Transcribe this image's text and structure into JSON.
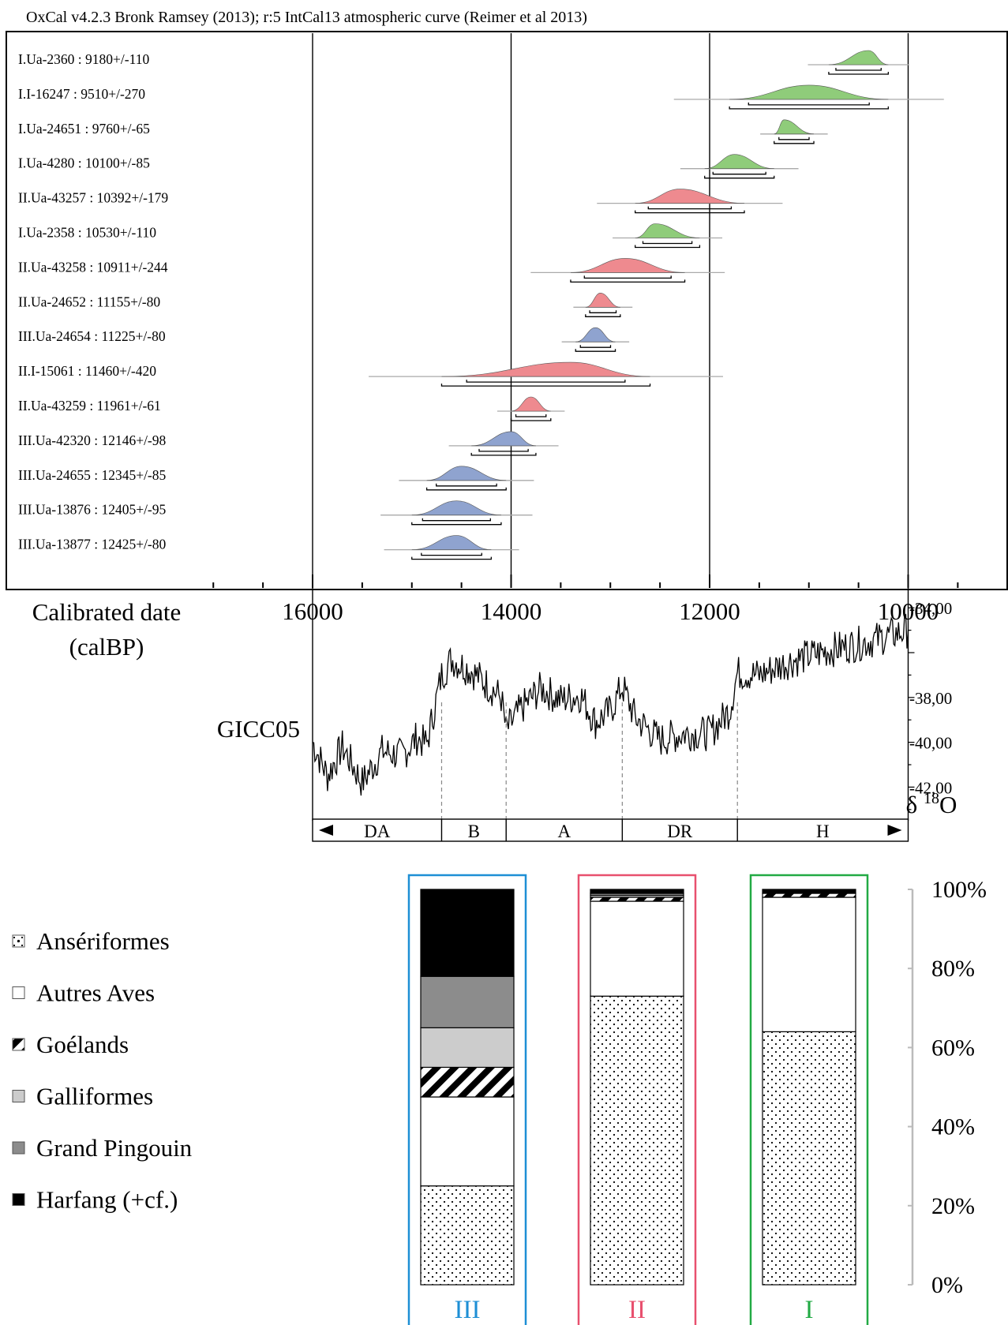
{
  "header": {
    "title": "OxCal v4.2.3 Bronk Ramsey (2013); r:5 IntCal13 atmospheric curve (Reimer et al 2013)"
  },
  "colors": {
    "I": "#22aa44",
    "II": "#e8506e",
    "III": "#1e8fd5",
    "dist_I": "#8fcc7a",
    "dist_II": "#ee8a8f",
    "dist_III": "#8fa3cf"
  },
  "chart_data": [
    {
      "type": "range",
      "name": "oxcal_calibration",
      "xlabel": "Calibrated date (calBP)",
      "xlim": [
        17000,
        9000
      ],
      "x_reversed": true,
      "tick_labels": [
        "16000",
        "14000",
        "12000",
        "10000"
      ],
      "tick_values": [
        16000,
        14000,
        12000,
        10000
      ],
      "samples": [
        {
          "label": "I.Ua-2360 : 9180+/-110",
          "group": "I",
          "range_start": 10800,
          "range_end": 10200,
          "peak": 10400
        },
        {
          "label": "I.I-16247 : 9510+/-270",
          "group": "I",
          "range_start": 11800,
          "range_end": 10200,
          "peak": 11000
        },
        {
          "label": "I.Ua-24651 : 9760+/-65",
          "group": "I",
          "range_start": 11350,
          "range_end": 10950,
          "peak": 11250
        },
        {
          "label": "I.Ua-4280 : 10100+/-85",
          "group": "I",
          "range_start": 12050,
          "range_end": 11350,
          "peak": 11750
        },
        {
          "label": "II.Ua-43257 : 10392+/-179",
          "group": "II",
          "range_start": 12750,
          "range_end": 11650,
          "peak": 12300
        },
        {
          "label": "I.Ua-2358 : 10530+/-110",
          "group": "I",
          "range_start": 12750,
          "range_end": 12100,
          "peak": 12550
        },
        {
          "label": "II.Ua-43258 : 10911+/-244",
          "group": "II",
          "range_start": 13400,
          "range_end": 12250,
          "peak": 12850
        },
        {
          "label": "II.Ua-24652 : 11155+/-80",
          "group": "II",
          "range_start": 13250,
          "range_end": 12900,
          "peak": 13100
        },
        {
          "label": "III.Ua-24654 : 11225+/-80",
          "group": "III",
          "range_start": 13350,
          "range_end": 12950,
          "peak": 13150
        },
        {
          "label": "II.I-15061 : 11460+/-420",
          "group": "II",
          "range_start": 14700,
          "range_end": 12600,
          "peak": 13400
        },
        {
          "label": "II.Ua-43259 : 11961+/-61",
          "group": "II",
          "range_start": 14000,
          "range_end": 13600,
          "peak": 13800
        },
        {
          "label": "III.Ua-42320 : 12146+/-98",
          "group": "III",
          "range_start": 14400,
          "range_end": 13750,
          "peak": 14000
        },
        {
          "label": "III.Ua-24655 : 12345+/-85",
          "group": "III",
          "range_start": 14850,
          "range_end": 14050,
          "peak": 14500
        },
        {
          "label": "III.Ua-13876 : 12405+/-95",
          "group": "III",
          "range_start": 15000,
          "range_end": 14100,
          "peak": 14550
        },
        {
          "label": "III.Ua-13877 : 12425+/-80",
          "group": "III",
          "range_start": 15000,
          "range_end": 14200,
          "peak": 14550
        }
      ]
    },
    {
      "type": "line",
      "name": "GICC05",
      "title": "GICC05",
      "ylabel": "δ 18O",
      "ylim": [
        -43.5,
        -33.5
      ],
      "y_tick_labels": [
        "-34,00",
        "-38,00",
        "-40,00",
        "-42,00"
      ],
      "y_tick_values": [
        -34,
        -38,
        -40,
        -42
      ],
      "control_points": [
        [
          16000,
          -40.0
        ],
        [
          15850,
          -41.5
        ],
        [
          15700,
          -40.2
        ],
        [
          15500,
          -41.8
        ],
        [
          15300,
          -40.4
        ],
        [
          15100,
          -40.6
        ],
        [
          14950,
          -39.8
        ],
        [
          14850,
          -40.1
        ],
        [
          14700,
          -37.0
        ],
        [
          14600,
          -36.3
        ],
        [
          14400,
          -36.8
        ],
        [
          14250,
          -37.4
        ],
        [
          14100,
          -38.0
        ],
        [
          14050,
          -39.5
        ],
        [
          13900,
          -38.5
        ],
        [
          13700,
          -37.6
        ],
        [
          13500,
          -38.1
        ],
        [
          13300,
          -37.9
        ],
        [
          13150,
          -39.1
        ],
        [
          13000,
          -38.6
        ],
        [
          12880,
          -37.5
        ],
        [
          12750,
          -38.9
        ],
        [
          12500,
          -39.9
        ],
        [
          12250,
          -39.6
        ],
        [
          12000,
          -39.6
        ],
        [
          11800,
          -38.6
        ],
        [
          11720,
          -36.9
        ],
        [
          11500,
          -37.0
        ],
        [
          11200,
          -36.4
        ],
        [
          10800,
          -35.9
        ],
        [
          10400,
          -35.5
        ],
        [
          10000,
          -35.0
        ]
      ]
    },
    {
      "type": "phases",
      "name": "climate_phases",
      "phases": [
        {
          "label": "DA",
          "start": 16000,
          "end": 14700
        },
        {
          "label": "B",
          "start": 14700,
          "end": 14050
        },
        {
          "label": "A",
          "start": 14050,
          "end": 12880
        },
        {
          "label": "DR",
          "start": 12880,
          "end": 11720
        },
        {
          "label": "H",
          "start": 11720,
          "end": 10000
        }
      ]
    },
    {
      "type": "stacked_bar",
      "name": "bird_composition",
      "ylim": [
        0,
        100
      ],
      "y_tick_labels": [
        "100%",
        "80%",
        "60%",
        "40%",
        "20%",
        "0%"
      ],
      "y_tick_values": [
        100,
        80,
        60,
        40,
        20,
        0
      ],
      "bars": [
        {
          "label": "III",
          "group": "III",
          "segments": [
            {
              "category": "Anseriformes",
              "value": 25
            },
            {
              "category": "Autres Aves",
              "value": 22.5
            },
            {
              "category": "Goélands",
              "value": 7.5
            },
            {
              "category": "Galliformes",
              "value": 10
            },
            {
              "category": "Grand Pingouin",
              "value": 13
            },
            {
              "category": "Harfang (+cf.)",
              "value": 22
            }
          ]
        },
        {
          "label": "II",
          "group": "II",
          "segments": [
            {
              "category": "Anseriformes",
              "value": 73
            },
            {
              "category": "Autres Aves",
              "value": 24
            },
            {
              "category": "Goélands",
              "value": 1
            },
            {
              "category": "Galliformes",
              "value": 0.5
            },
            {
              "category": "Grand Pingouin",
              "value": 0.5
            },
            {
              "category": "Harfang (+cf.)",
              "value": 1
            }
          ]
        },
        {
          "label": "I",
          "group": "I",
          "segments": [
            {
              "category": "Anseriformes",
              "value": 64
            },
            {
              "category": "Autres Aves",
              "value": 34
            },
            {
              "category": "Goélands",
              "value": 1
            },
            {
              "category": "Galliformes",
              "value": 0
            },
            {
              "category": "Grand Pingouin",
              "value": 0
            },
            {
              "category": "Harfang (+cf.)",
              "value": 1
            }
          ]
        }
      ],
      "legend": [
        {
          "key": "Anseriformes",
          "label": "Ansériformes",
          "pattern": "dot"
        },
        {
          "key": "Autres Aves",
          "label": "Autres Aves",
          "pattern": "white"
        },
        {
          "key": "Goélands",
          "label": "Goélands",
          "pattern": "hatch"
        },
        {
          "key": "Galliformes",
          "label": "Galliformes",
          "pattern": "lightgray"
        },
        {
          "key": "Grand Pingouin",
          "label": "Grand Pingouin",
          "pattern": "gray"
        },
        {
          "key": "Harfang (+cf.)",
          "label": "Harfang (+cf.)",
          "pattern": "black"
        }
      ]
    }
  ]
}
